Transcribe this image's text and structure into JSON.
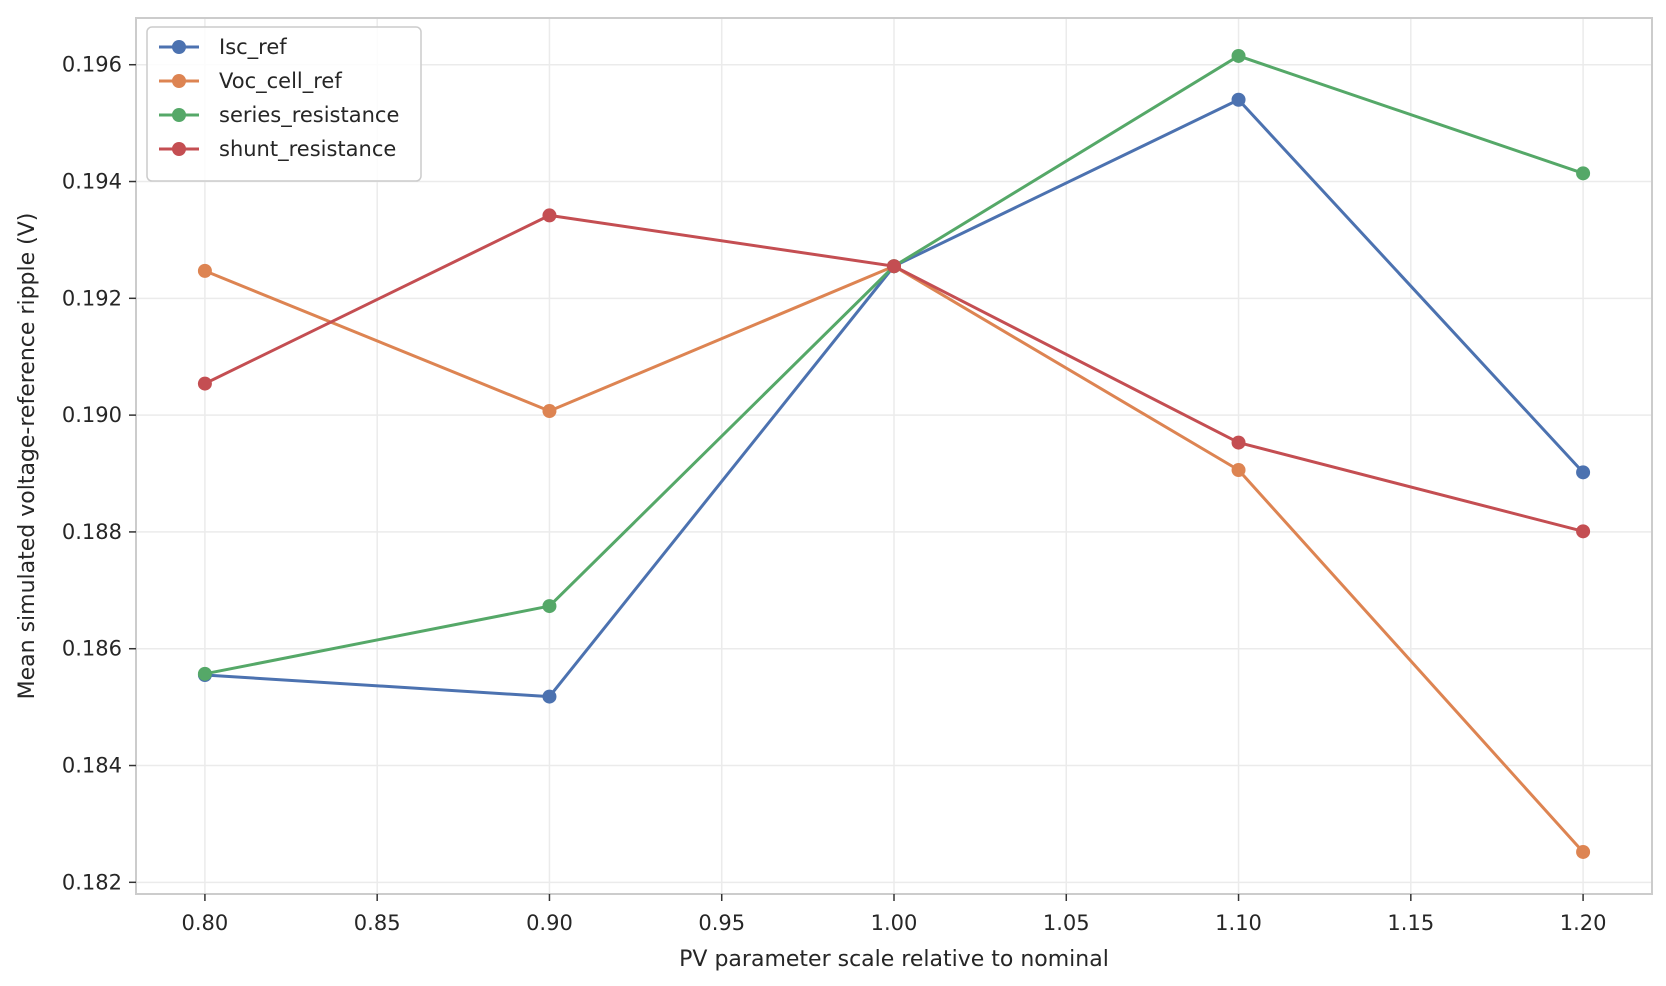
{
  "chart_data": {
    "type": "line",
    "title": "",
    "xlabel": "PV parameter scale relative to nominal",
    "ylabel": "Mean simulated voltage-reference ripple (V)",
    "x": [
      0.8,
      0.9,
      1.0,
      1.1,
      1.2
    ],
    "xlim": [
      0.78,
      1.22
    ],
    "ylim": [
      0.1818,
      0.1968
    ],
    "xticks": [
      "0.80",
      "0.85",
      "0.90",
      "0.95",
      "1.00",
      "1.05",
      "1.10",
      "1.15",
      "1.20"
    ],
    "yticks": [
      "0.182",
      "0.184",
      "0.186",
      "0.188",
      "0.190",
      "0.192",
      "0.194",
      "0.196"
    ],
    "grid": true,
    "legend_position": "top-left",
    "series": [
      {
        "name": "Isc_ref",
        "color": "#4c72b0",
        "values": [
          0.18555,
          0.18518,
          0.19255,
          0.1954,
          0.18902
        ]
      },
      {
        "name": "Voc_cell_ref",
        "color": "#dd8452",
        "values": [
          0.19247,
          0.19007,
          0.19255,
          0.18906,
          0.18252
        ]
      },
      {
        "name": "series_resistance",
        "color": "#55a868",
        "values": [
          0.18557,
          0.18673,
          0.19255,
          0.19615,
          0.19414
        ]
      },
      {
        "name": "shunt_resistance",
        "color": "#c44e52",
        "values": [
          0.19054,
          0.19342,
          0.19255,
          0.18953,
          0.18801
        ]
      }
    ]
  }
}
